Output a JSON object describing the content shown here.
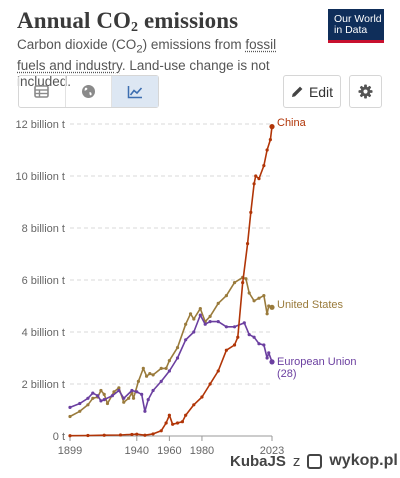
{
  "header": {
    "title_main": "Annual CO",
    "title_sub": "2",
    "title_end": " emissions",
    "subtitle_pre": "Carbon dioxide (CO",
    "subtitle_sub": "2",
    "subtitle_mid": ") emissions from ",
    "subtitle_link": "fossil fuels and industry",
    "subtitle_post": ". Land-use change is not included.",
    "logo_line1": "Our World",
    "logo_line2": "in Data"
  },
  "toolbar": {
    "tabs": [
      {
        "name": "table",
        "icon": "table-icon"
      },
      {
        "name": "map",
        "icon": "globe-icon"
      },
      {
        "name": "chart",
        "icon": "line-chart-icon",
        "active": true
      }
    ],
    "edit_label": "Edit",
    "edit_icon": "pencil-icon",
    "settings_icon": "gear-icon"
  },
  "chart_data": {
    "type": "line",
    "x_range": [
      1899,
      2023
    ],
    "ylim": [
      0,
      12
    ],
    "y_ticks": [
      0,
      2,
      4,
      6,
      8,
      10,
      12
    ],
    "y_tick_labels": [
      "0 t",
      "2 billion t",
      "4 billion t",
      "6 billion t",
      "8 billion t",
      "10 billion t",
      "12 billion t"
    ],
    "x_tick_labels": [
      "1899",
      "1940",
      "1960",
      "1980",
      "2023"
    ],
    "x_tick_values": [
      1899,
      1940,
      1960,
      1980,
      2023
    ],
    "grid": "horizontal dashed",
    "series": [
      {
        "name": "United States",
        "color": "#9a7b3c",
        "points": [
          [
            1899,
            0.75
          ],
          [
            1905,
            0.95
          ],
          [
            1910,
            1.2
          ],
          [
            1913,
            1.45
          ],
          [
            1916,
            1.5
          ],
          [
            1918,
            1.75
          ],
          [
            1920,
            1.6
          ],
          [
            1922,
            1.25
          ],
          [
            1926,
            1.7
          ],
          [
            1929,
            1.85
          ],
          [
            1932,
            1.3
          ],
          [
            1935,
            1.45
          ],
          [
            1937,
            1.65
          ],
          [
            1938,
            1.45
          ],
          [
            1941,
            2.1
          ],
          [
            1944,
            2.6
          ],
          [
            1946,
            2.3
          ],
          [
            1948,
            2.4
          ],
          [
            1950,
            2.35
          ],
          [
            1955,
            2.6
          ],
          [
            1958,
            2.6
          ],
          [
            1960,
            2.9
          ],
          [
            1965,
            3.4
          ],
          [
            1970,
            4.3
          ],
          [
            1973,
            4.7
          ],
          [
            1975,
            4.5
          ],
          [
            1979,
            4.9
          ],
          [
            1982,
            4.4
          ],
          [
            1985,
            4.6
          ],
          [
            1990,
            5.1
          ],
          [
            1995,
            5.4
          ],
          [
            2000,
            5.9
          ],
          [
            2005,
            6.1
          ],
          [
            2007,
            6.05
          ],
          [
            2009,
            5.5
          ],
          [
            2012,
            5.2
          ],
          [
            2015,
            5.3
          ],
          [
            2018,
            5.4
          ],
          [
            2020,
            4.7
          ],
          [
            2021,
            5.0
          ],
          [
            2023,
            4.95
          ]
        ]
      },
      {
        "name": "European Union (28)",
        "color": "#6b3fa0",
        "points": [
          [
            1899,
            1.1
          ],
          [
            1905,
            1.25
          ],
          [
            1910,
            1.45
          ],
          [
            1913,
            1.65
          ],
          [
            1916,
            1.55
          ],
          [
            1918,
            1.35
          ],
          [
            1920,
            1.4
          ],
          [
            1925,
            1.55
          ],
          [
            1929,
            1.75
          ],
          [
            1932,
            1.45
          ],
          [
            1937,
            1.75
          ],
          [
            1940,
            1.7
          ],
          [
            1943,
            1.6
          ],
          [
            1945,
            0.95
          ],
          [
            1947,
            1.4
          ],
          [
            1950,
            1.75
          ],
          [
            1955,
            2.1
          ],
          [
            1960,
            2.5
          ],
          [
            1965,
            3.0
          ],
          [
            1970,
            3.7
          ],
          [
            1975,
            4.0
          ],
          [
            1979,
            4.65
          ],
          [
            1982,
            4.3
          ],
          [
            1985,
            4.4
          ],
          [
            1990,
            4.4
          ],
          [
            1995,
            4.2
          ],
          [
            2000,
            4.2
          ],
          [
            2006,
            4.35
          ],
          [
            2009,
            3.9
          ],
          [
            2012,
            3.8
          ],
          [
            2015,
            3.55
          ],
          [
            2018,
            3.5
          ],
          [
            2020,
            3.0
          ],
          [
            2021,
            3.2
          ],
          [
            2023,
            2.85
          ]
        ]
      },
      {
        "name": "China",
        "color": "#b13507",
        "points": [
          [
            1899,
            0.01
          ],
          [
            1910,
            0.02
          ],
          [
            1920,
            0.03
          ],
          [
            1930,
            0.04
          ],
          [
            1937,
            0.06
          ],
          [
            1940,
            0.07
          ],
          [
            1945,
            0.03
          ],
          [
            1950,
            0.08
          ],
          [
            1955,
            0.2
          ],
          [
            1958,
            0.5
          ],
          [
            1960,
            0.8
          ],
          [
            1962,
            0.45
          ],
          [
            1965,
            0.5
          ],
          [
            1968,
            0.55
          ],
          [
            1970,
            0.8
          ],
          [
            1975,
            1.2
          ],
          [
            1980,
            1.5
          ],
          [
            1985,
            2.0
          ],
          [
            1990,
            2.5
          ],
          [
            1995,
            3.3
          ],
          [
            2000,
            3.5
          ],
          [
            2002,
            3.8
          ],
          [
            2005,
            5.9
          ],
          [
            2008,
            7.4
          ],
          [
            2010,
            8.6
          ],
          [
            2012,
            9.7
          ],
          [
            2013,
            10.0
          ],
          [
            2015,
            9.9
          ],
          [
            2018,
            10.4
          ],
          [
            2020,
            11.0
          ],
          [
            2022,
            11.4
          ],
          [
            2023,
            11.9
          ]
        ]
      }
    ]
  },
  "watermark": {
    "user": "KubaJS",
    "z": "z",
    "site": "wykop.pl"
  }
}
